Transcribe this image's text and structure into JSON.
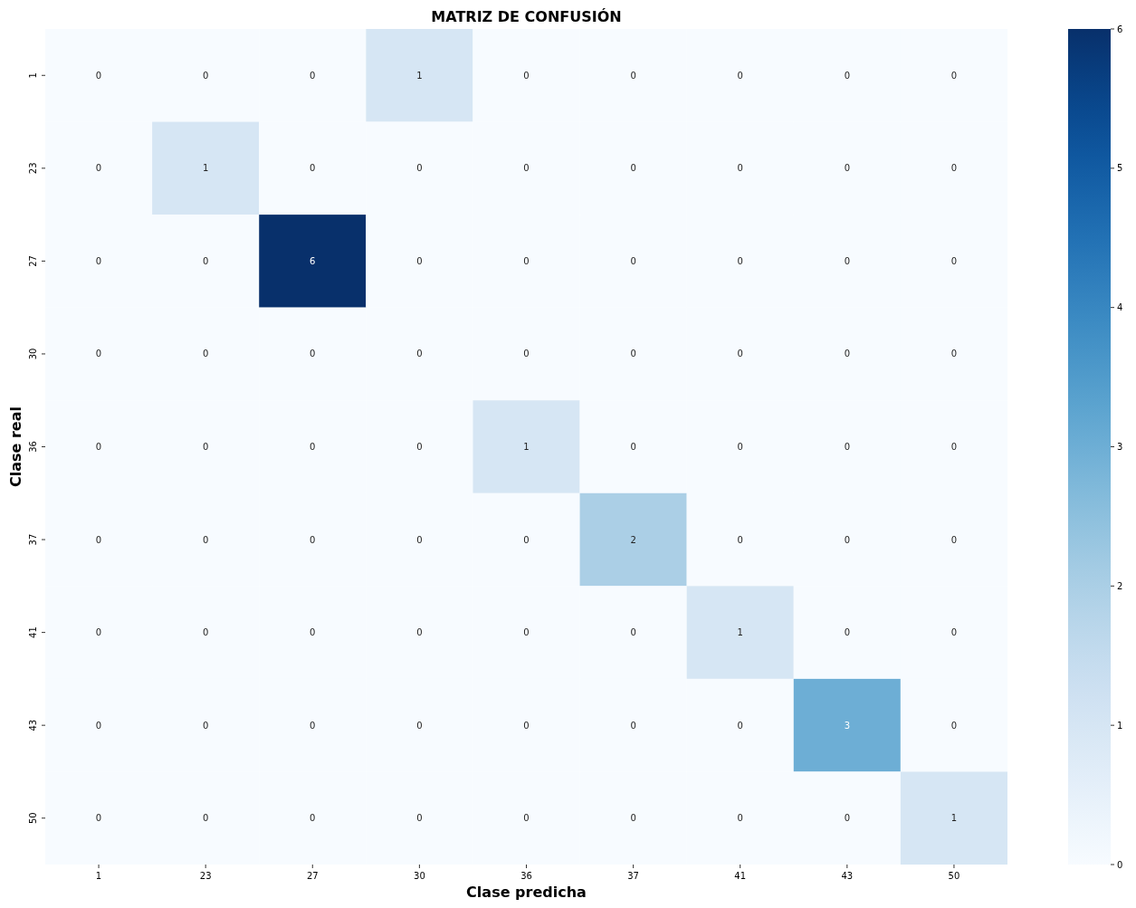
{
  "chart_data": {
    "type": "heatmap",
    "title": "MATRIZ DE CONFUSIÓN",
    "xlabel": "Clase predicha",
    "ylabel": "Clase real",
    "categories": [
      "1",
      "23",
      "27",
      "30",
      "36",
      "37",
      "41",
      "43",
      "50"
    ],
    "y_categories": [
      "1",
      "23",
      "27",
      "30",
      "36",
      "37",
      "41",
      "43",
      "50"
    ],
    "cells": [
      [
        0,
        0,
        0,
        1,
        0,
        0,
        0,
        0,
        0
      ],
      [
        0,
        1,
        0,
        0,
        0,
        0,
        0,
        0,
        0
      ],
      [
        0,
        0,
        6,
        0,
        0,
        0,
        0,
        0,
        0
      ],
      [
        0,
        0,
        0,
        0,
        0,
        0,
        0,
        0,
        0
      ],
      [
        0,
        0,
        0,
        0,
        1,
        0,
        0,
        0,
        0
      ],
      [
        0,
        0,
        0,
        0,
        0,
        2,
        0,
        0,
        0
      ],
      [
        0,
        0,
        0,
        0,
        0,
        0,
        1,
        0,
        0
      ],
      [
        0,
        0,
        0,
        0,
        0,
        0,
        0,
        3,
        0
      ],
      [
        0,
        0,
        0,
        0,
        0,
        0,
        0,
        0,
        1
      ]
    ],
    "clim": [
      0,
      6
    ],
    "cticks": [
      0,
      1,
      2,
      3,
      4,
      5,
      6
    ],
    "data_labels": true
  }
}
